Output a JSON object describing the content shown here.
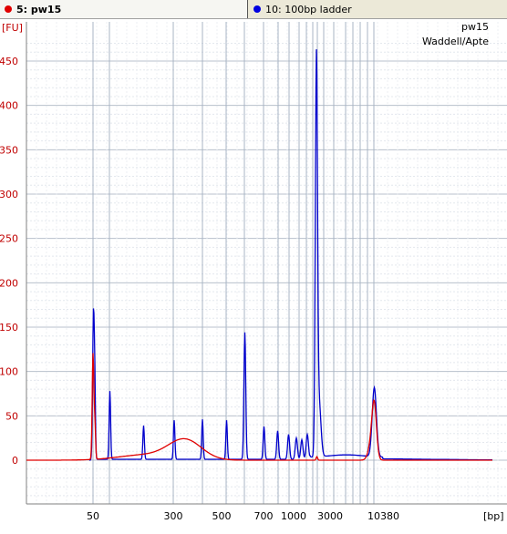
{
  "tabs": [
    {
      "label": "5: pw15",
      "color": "#e00000",
      "active": true
    },
    {
      "label": "10: 100bp ladder",
      "color": "#0000e0",
      "active": false
    }
  ],
  "chart_data": {
    "type": "line",
    "annotations": [
      "pw15",
      "Waddell/Apte"
    ],
    "ylabel": "[FU]",
    "xlabel": "[bp]",
    "y_ticks": [
      "450",
      "400",
      "350",
      "300",
      "250",
      "200",
      "150",
      "100",
      "50",
      "0"
    ],
    "x_ticks": [
      "50",
      "300",
      "500",
      "700",
      "1000",
      "3000",
      "10380"
    ],
    "ylim": [
      -50,
      480
    ],
    "series": [
      {
        "name": "5: pw15",
        "color": "#e00000"
      },
      {
        "name": "10: 100bp ladder",
        "color": "#0000cc"
      }
    ]
  }
}
